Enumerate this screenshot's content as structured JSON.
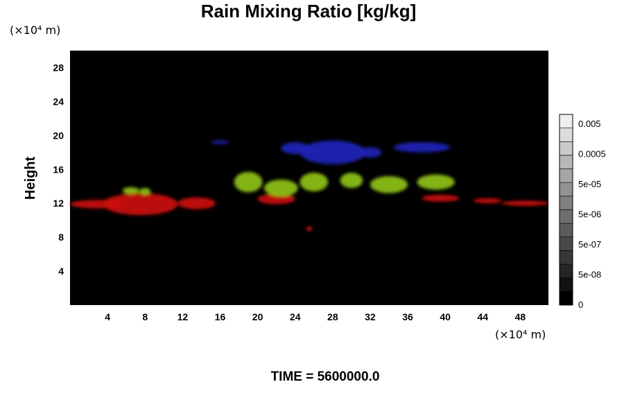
{
  "chart_data": {
    "type": "heatmap",
    "title": "Rain Mixing Ratio [kg/kg]",
    "ylabel": "Height",
    "xlabel": "",
    "x_unit": "(×10⁴ m)",
    "y_unit": "(×10⁴ m)",
    "xlim": [
      0,
      51
    ],
    "ylim": [
      0,
      30
    ],
    "x_ticks": [
      4,
      8,
      12,
      16,
      20,
      24,
      28,
      32,
      36,
      40,
      44,
      48
    ],
    "y_ticks": [
      4,
      8,
      12,
      16,
      20,
      24,
      28
    ],
    "background_color": "#000000",
    "grid": false,
    "colorbar": {
      "placement": "right",
      "tick_labels": [
        "0.005",
        "0.0005",
        "5e-05",
        "5e-06",
        "5e-07",
        "5e-08",
        "0"
      ],
      "levels": 14,
      "color_low": "#000000",
      "color_high": "#eeeeee"
    },
    "regions": [
      {
        "color": "#cc1111",
        "cx": 3.0,
        "cy": 11.9,
        "rx": 3.0,
        "ry": 0.5
      },
      {
        "color": "#cc1111",
        "cx": 7.5,
        "cy": 11.9,
        "rx": 4.0,
        "ry": 1.3
      },
      {
        "color": "#cc1111",
        "cx": 13.5,
        "cy": 12.0,
        "rx": 2.0,
        "ry": 0.7
      },
      {
        "color": "#cc1111",
        "cx": 22.0,
        "cy": 12.5,
        "rx": 2.0,
        "ry": 0.6
      },
      {
        "color": "#cc1111",
        "cx": 39.5,
        "cy": 12.6,
        "rx": 2.0,
        "ry": 0.4
      },
      {
        "color": "#cc1111",
        "cx": 44.5,
        "cy": 12.3,
        "rx": 1.5,
        "ry": 0.3
      },
      {
        "color": "#cc1111",
        "cx": 48.5,
        "cy": 12.0,
        "rx": 2.5,
        "ry": 0.3
      },
      {
        "color": "#cc1111",
        "cx": 25.5,
        "cy": 9.0,
        "rx": 0.3,
        "ry": 0.3
      },
      {
        "color": "#8fc21a",
        "cx": 19.0,
        "cy": 14.5,
        "rx": 1.5,
        "ry": 1.2
      },
      {
        "color": "#8fc21a",
        "cx": 22.5,
        "cy": 13.8,
        "rx": 1.8,
        "ry": 1.0
      },
      {
        "color": "#8fc21a",
        "cx": 26.0,
        "cy": 14.5,
        "rx": 1.5,
        "ry": 1.1
      },
      {
        "color": "#8fc21a",
        "cx": 30.0,
        "cy": 14.7,
        "rx": 1.2,
        "ry": 0.9
      },
      {
        "color": "#8fc21a",
        "cx": 34.0,
        "cy": 14.2,
        "rx": 2.0,
        "ry": 1.0
      },
      {
        "color": "#8fc21a",
        "cx": 39.0,
        "cy": 14.5,
        "rx": 2.0,
        "ry": 0.9
      },
      {
        "color": "#8fc21a",
        "cx": 6.5,
        "cy": 13.5,
        "rx": 0.9,
        "ry": 0.4
      },
      {
        "color": "#8fc21a",
        "cx": 8.0,
        "cy": 13.4,
        "rx": 0.6,
        "ry": 0.4
      },
      {
        "color": "#1f24b8",
        "cx": 28.0,
        "cy": 18.0,
        "rx": 3.5,
        "ry": 1.4
      },
      {
        "color": "#1f24b8",
        "cx": 24.0,
        "cy": 18.5,
        "rx": 1.5,
        "ry": 0.7
      },
      {
        "color": "#1f24b8",
        "cx": 32.0,
        "cy": 18.0,
        "rx": 1.2,
        "ry": 0.6
      },
      {
        "color": "#1f24b8",
        "cx": 37.5,
        "cy": 18.6,
        "rx": 3.0,
        "ry": 0.6
      },
      {
        "color": "#1f24b8",
        "cx": 16.0,
        "cy": 19.2,
        "rx": 1.0,
        "ry": 0.2
      }
    ]
  },
  "footer": {
    "time_label": "TIME = 5600000.0"
  }
}
